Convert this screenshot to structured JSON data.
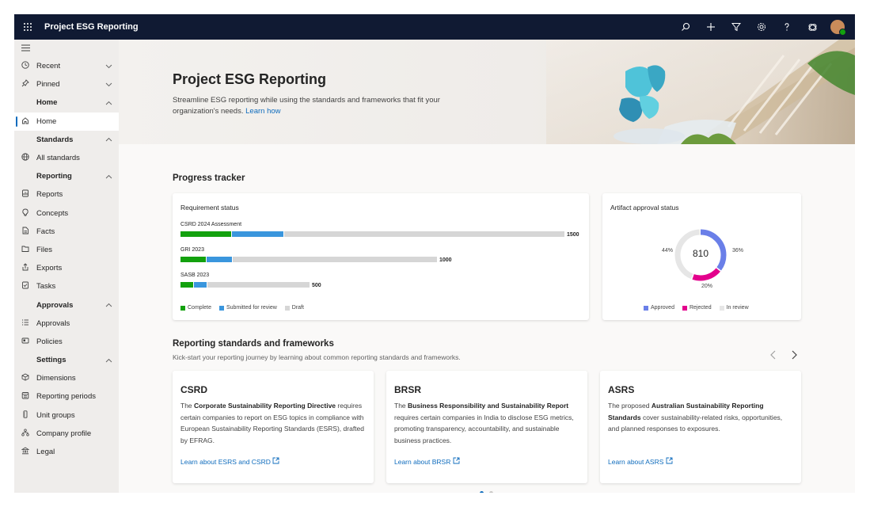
{
  "topbar": {
    "app_title": "Project ESG Reporting",
    "icons": [
      "search-icon",
      "add-icon",
      "filter-icon",
      "settings-icon",
      "help-icon",
      "copilot-icon",
      "avatar"
    ]
  },
  "sidebar": {
    "items": [
      {
        "label": "Recent",
        "icon": "clock-icon",
        "chevron": "down"
      },
      {
        "label": "Pinned",
        "icon": "pin-icon",
        "chevron": "down"
      },
      {
        "label": "Home",
        "group": true,
        "chevron": "up"
      },
      {
        "label": "Home",
        "icon": "home-icon",
        "active": true
      },
      {
        "label": "Standards",
        "group": true,
        "chevron": "up"
      },
      {
        "label": "All standards",
        "icon": "globe-icon"
      },
      {
        "label": "Reporting",
        "group": true,
        "chevron": "up"
      },
      {
        "label": "Reports",
        "icon": "reports-icon"
      },
      {
        "label": "Concepts",
        "icon": "lightbulb-icon"
      },
      {
        "label": "Facts",
        "icon": "document-icon"
      },
      {
        "label": "Files",
        "icon": "folder-icon"
      },
      {
        "label": "Exports",
        "icon": "export-icon"
      },
      {
        "label": "Tasks",
        "icon": "tasks-icon"
      },
      {
        "label": "Approvals",
        "group": true,
        "chevron": "up"
      },
      {
        "label": "Approvals",
        "icon": "list-icon"
      },
      {
        "label": "Policies",
        "icon": "policy-icon"
      },
      {
        "label": "Settings",
        "group": true,
        "chevron": "up"
      },
      {
        "label": "Dimensions",
        "icon": "cube-icon"
      },
      {
        "label": "Reporting periods",
        "icon": "calendar-icon"
      },
      {
        "label": "Unit groups",
        "icon": "ruler-icon"
      },
      {
        "label": "Company profile",
        "icon": "org-icon"
      },
      {
        "label": "Legal",
        "icon": "bank-icon"
      }
    ]
  },
  "hero": {
    "title": "Project ESG Reporting",
    "description": "Streamline ESG reporting while using the standards and frameworks that fit your organization's needs.",
    "link": "Learn how"
  },
  "progress": {
    "section_title": "Progress tracker",
    "requirement": {
      "title": "Requirement status",
      "rows": [
        {
          "label": "CSRD 2024 Assessment",
          "total": "1500",
          "complete": 200,
          "submitted": 200,
          "draft": 1100
        },
        {
          "label": "GRI 2023",
          "total": "1000",
          "complete": 100,
          "submitted": 100,
          "draft": 800
        },
        {
          "label": "SASB 2023",
          "total": "500",
          "complete": 50,
          "submitted": 50,
          "draft": 400
        }
      ],
      "legend": [
        "Complete",
        "Submitted for review",
        "Draft"
      ],
      "colors": {
        "complete": "#13a10e",
        "submitted": "#3a96dd",
        "draft": "#d6d6d6"
      }
    },
    "artifact": {
      "title": "Artifact approval status",
      "total": "810",
      "slices": [
        {
          "name": "Approved",
          "pct": 36,
          "label": "36%",
          "color": "#6a7fe8"
        },
        {
          "name": "Rejected",
          "pct": 20,
          "label": "20%",
          "color": "#e3008c"
        },
        {
          "name": "In review",
          "pct": 44,
          "label": "44%",
          "color": "#e6e6e6"
        }
      ],
      "legend": [
        "Approved",
        "Rejected",
        "In review"
      ]
    }
  },
  "standards": {
    "section_title": "Reporting standards and frameworks",
    "description": "Kick-start your reporting journey by learning about common reporting standards and frameworks.",
    "cards": [
      {
        "title": "CSRD",
        "pre": "The ",
        "bold": "Corporate Sustainability Reporting Directive",
        "post": " requires certain companies to report on ESG topics in compliance with European Sustainability Reporting Standards (ESRS), drafted by EFRAG.",
        "link": "Learn about ESRS and CSRD"
      },
      {
        "title": "BRSR",
        "pre": "The ",
        "bold": "Business Responsibility and Sustainability Report",
        "post": " requires certain companies in India to disclose ESG metrics, promoting transparency, accountability, and sustainable business practices.",
        "link": "Learn about BRSR"
      },
      {
        "title": "ASRS",
        "pre": "The proposed ",
        "bold": "Australian Sustainability Reporting Standards",
        "post": " cover sustainability-related risks, opportunities, and planned responses to exposures.",
        "link": "Learn about ASRS"
      }
    ],
    "pager": {
      "pages": 2,
      "current": 1
    }
  }
}
